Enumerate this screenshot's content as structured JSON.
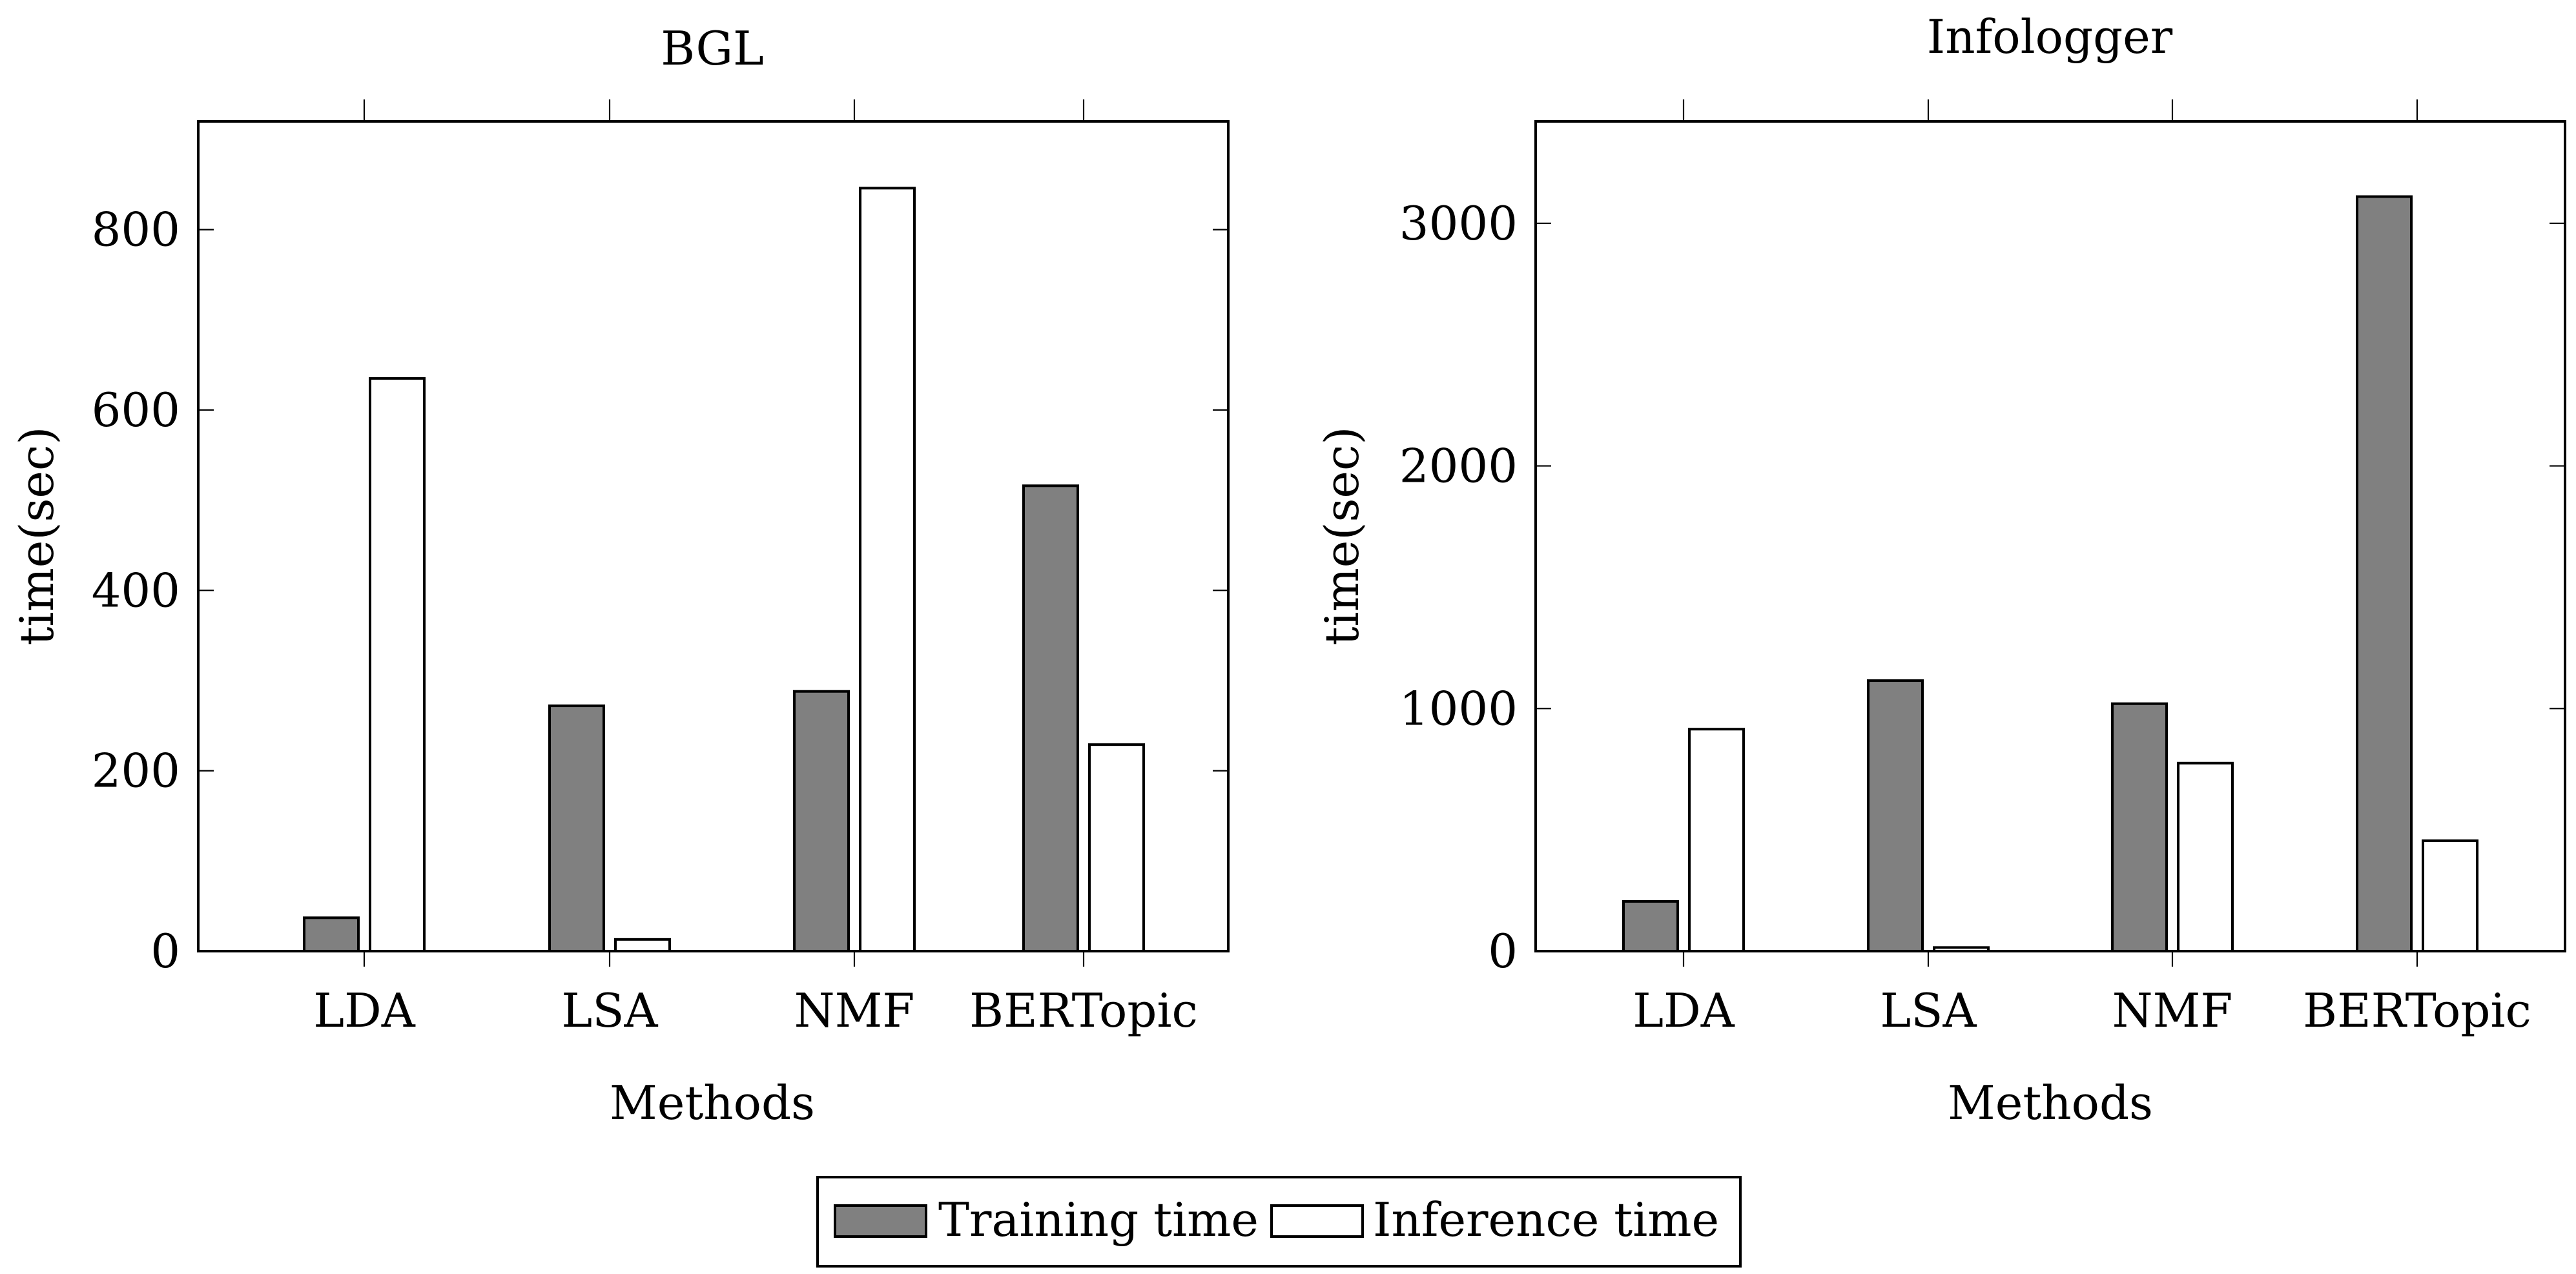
{
  "chart_data": [
    {
      "type": "bar",
      "title": "BGL",
      "xlabel": "Methods",
      "ylabel": "time(sec)",
      "categories": [
        "LDA",
        "LSA",
        "NMF",
        "BERTopic"
      ],
      "yticks": [
        0,
        200,
        400,
        600,
        800
      ],
      "ylim": [
        0,
        920
      ],
      "series": [
        {
          "name": "Training time",
          "values": [
            37,
            272,
            288,
            516
          ]
        },
        {
          "name": "Inference time",
          "values": [
            635,
            13,
            846,
            229
          ]
        }
      ]
    },
    {
      "type": "bar",
      "title": "Infologger",
      "xlabel": "Methods",
      "ylabel": "time(sec)",
      "categories": [
        "LDA",
        "LSA",
        "NMF",
        "BERTopic"
      ],
      "yticks": [
        0,
        1000,
        2000,
        3000
      ],
      "ylim": [
        0,
        3420
      ],
      "series": [
        {
          "name": "Training time",
          "values": [
            205,
            1115,
            1020,
            3110
          ]
        },
        {
          "name": "Inference time",
          "values": [
            915,
            15,
            775,
            455
          ]
        }
      ]
    }
  ],
  "legend": {
    "entries": [
      {
        "label": "Training time",
        "fill": "#808080"
      },
      {
        "label": "Inference time",
        "fill": "#ffffff"
      }
    ],
    "text_color": "#0070b0"
  }
}
